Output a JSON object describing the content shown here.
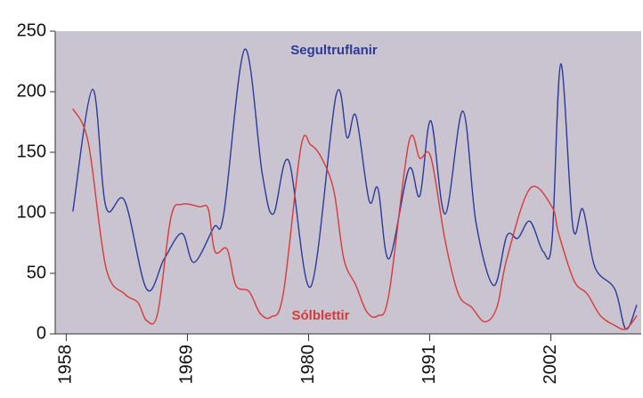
{
  "chart_data": {
    "type": "line",
    "xlim": [
      1957,
      2010.2
    ],
    "ylim": [
      0,
      250
    ],
    "xticks": [
      1958,
      1969,
      1980,
      1991,
      2002
    ],
    "yticks": [
      0,
      50,
      100,
      150,
      200,
      250
    ],
    "series": [
      {
        "name": "Segultruflanir",
        "color": "#2b3a9a",
        "x": [
          1958.6,
          1960.4,
          1961.6,
          1963.3,
          1965.3,
          1966.9,
          1968.5,
          1969.6,
          1971.4,
          1972.3,
          1974.2,
          1975.8,
          1976.8,
          1978.2,
          1980.2,
          1982.5,
          1983.5,
          1984.3,
          1985.5,
          1986.3,
          1987.3,
          1989.1,
          1990.1,
          1991.1,
          1992.4,
          1994.0,
          1995.2,
          1996.8,
          1998.0,
          1999.0,
          2000.1,
          2001.3,
          2002.1,
          2002.9,
          2004.0,
          2004.9,
          2006.0,
          2007.8,
          2008.8,
          2009.8
        ],
        "values": [
          101,
          202,
          105,
          110,
          37,
          62,
          83,
          59,
          88,
          99,
          235,
          132,
          99,
          143,
          39,
          197,
          162,
          180,
          110,
          120,
          62,
          136,
          114,
          176,
          99,
          184,
          92,
          40,
          81,
          79,
          93,
          68,
          77,
          223,
          88,
          103,
          55,
          37,
          4,
          24
        ]
      },
      {
        "name": "Sólblettir",
        "color": "#d83a3a",
        "x": [
          1958.6,
          1960.0,
          1961.6,
          1963.3,
          1964.5,
          1965.3,
          1966.3,
          1967.5,
          1968.5,
          1970.1,
          1970.9,
          1971.5,
          1972.6,
          1973.4,
          1974.6,
          1975.6,
          1976.6,
          1977.7,
          1979.3,
          1980.2,
          1981.2,
          1982.3,
          1983.2,
          1984.3,
          1985.3,
          1986.3,
          1987.3,
          1989.1,
          1990.1,
          1991.1,
          1992.4,
          1993.6,
          1994.8,
          1996.0,
          1997.1,
          1998.0,
          2000.1,
          2002.1,
          2002.7,
          2004.1,
          2005.3,
          2006.5,
          2007.8,
          2008.8,
          2009.8
        ],
        "values": [
          186,
          158,
          55,
          33,
          26,
          11,
          17,
          96,
          107,
          105,
          103,
          68,
          70,
          40,
          35,
          17,
          14,
          33,
          154,
          156,
          145,
          118,
          62,
          40,
          18,
          15,
          33,
          158,
          145,
          146,
          77,
          33,
          22,
          10,
          22,
          62,
          120,
          105,
          83,
          44,
          33,
          15,
          7,
          4,
          15
        ]
      }
    ]
  }
}
